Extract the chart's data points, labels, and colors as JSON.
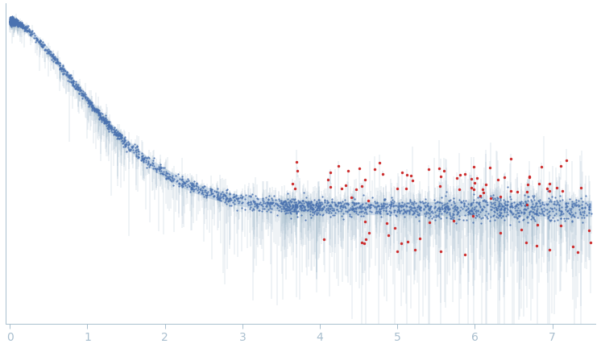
{
  "title": "",
  "xlabel": "",
  "ylabel": "",
  "xlim": [
    -0.05,
    7.55
  ],
  "ylim": [
    -0.42,
    1.08
  ],
  "x_ticks": [
    0,
    1,
    2,
    3,
    4,
    5,
    6,
    7
  ],
  "background_color": "#ffffff",
  "axis_color": "#a8bece",
  "dot_color_blue": "#4a72b0",
  "dot_color_red": "#cc2222",
  "error_band_color": "#c8d8ea",
  "n_points": 2500,
  "seed": 17
}
